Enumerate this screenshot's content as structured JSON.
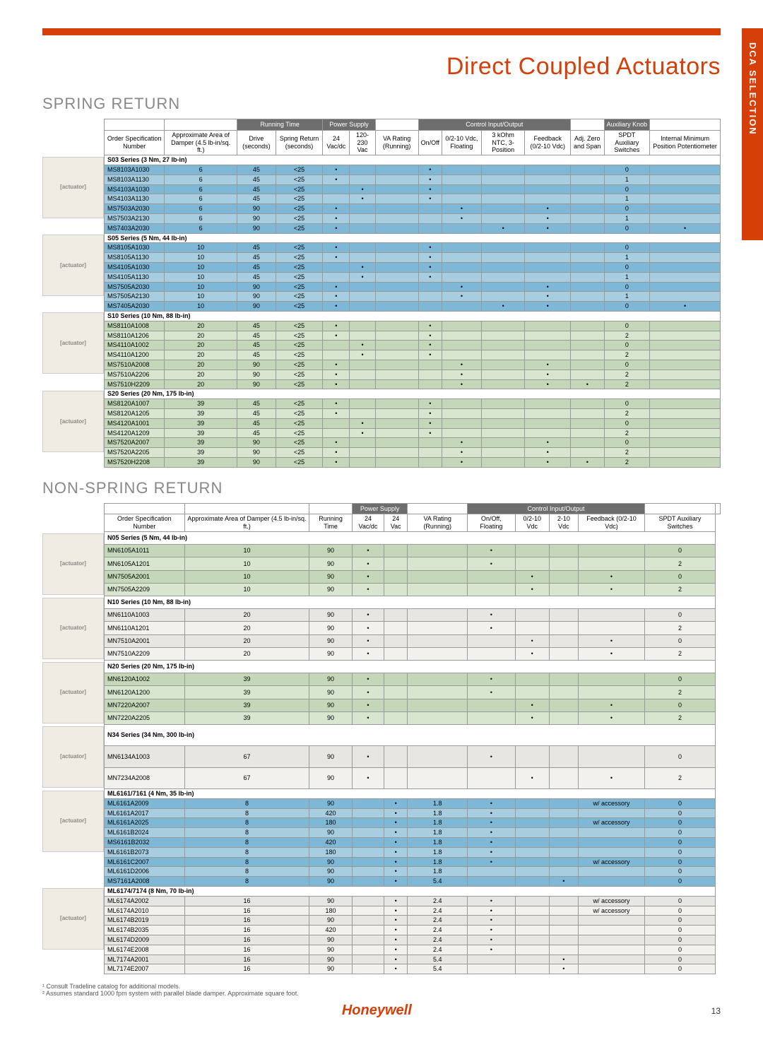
{
  "page_title": "Direct Coupled Actuators",
  "side_tab": "DCA SELECTION",
  "brand": "Honeywell",
  "page_number": "13",
  "footnotes": [
    "¹ Consult Tradeline catalog for additional models.",
    "² Assumes standard 1000 fpm system with parallel blade damper. Approximate square foot."
  ],
  "colors": {
    "accent": "#d73f09",
    "grey_header": "#6e6e6e",
    "row_blue": "#7fb8d6",
    "row_blue_alt": "#a7cde1",
    "row_green": "#c4d8b9",
    "row_green_alt": "#d8e5cf",
    "row_grey": "#e8e6e2",
    "row_grey_alt": "#f3f1ee",
    "text_grey": "#888888"
  },
  "sections": {
    "spring": {
      "title": "SPRING RETURN",
      "group_headers": [
        "",
        "",
        "Running Time",
        "Power Supply",
        "",
        "Control Input/Output",
        "",
        "Auxiliary Knob",
        ""
      ],
      "group_spans": [
        1,
        1,
        2,
        2,
        1,
        4,
        1,
        1,
        1
      ],
      "columns": [
        "Order Specification Number",
        "Approximate Area of Damper (4.5 lb-in/sq. ft.)",
        "Drive (seconds)",
        "Spring Return (seconds)",
        "24 Vac/dc",
        "120-230 Vac",
        "VA Rating (Running)",
        "On/Off",
        "0/2-10 Vdc, Floating",
        "3 kOhm NTC, 3-Position",
        "Feedback (0/2-10 Vdc)",
        "Adj. Zero and Span",
        "SPDT Auxiliary Switches",
        "Internal Minimum Position Potentiometer"
      ],
      "groups": [
        {
          "series": "S03 Series (3 Nm, 27 lb-in)",
          "color": "blue",
          "rows": [
            [
              "MS8103A1030",
              "6",
              "45",
              "<25",
              "•",
              "",
              "",
              "•",
              "",
              "",
              "",
              "",
              "0",
              ""
            ],
            [
              "MS8103A1130",
              "6",
              "45",
              "<25",
              "•",
              "",
              "",
              "•",
              "",
              "",
              "",
              "",
              "1",
              ""
            ],
            [
              "MS4103A1030",
              "6",
              "45",
              "<25",
              "",
              "•",
              "",
              "•",
              "",
              "",
              "",
              "",
              "0",
              ""
            ],
            [
              "MS4103A1130",
              "6",
              "45",
              "<25",
              "",
              "•",
              "",
              "•",
              "",
              "",
              "",
              "",
              "1",
              ""
            ],
            [
              "MS7503A2030",
              "6",
              "90",
              "<25",
              "•",
              "",
              "",
              "",
              "•",
              "",
              "•",
              "",
              "0",
              ""
            ],
            [
              "MS7503A2130",
              "6",
              "90",
              "<25",
              "•",
              "",
              "",
              "",
              "•",
              "",
              "•",
              "",
              "1",
              ""
            ],
            [
              "MS7403A2030",
              "6",
              "90",
              "<25",
              "•",
              "",
              "",
              "",
              "",
              "•",
              "•",
              "",
              "0",
              "•"
            ]
          ]
        },
        {
          "series": "S05 Series (5 Nm, 44 lb-in)",
          "color": "blue",
          "rows": [
            [
              "MS8105A1030",
              "10",
              "45",
              "<25",
              "•",
              "",
              "",
              "•",
              "",
              "",
              "",
              "",
              "0",
              ""
            ],
            [
              "MS8105A1130",
              "10",
              "45",
              "<25",
              "•",
              "",
              "",
              "•",
              "",
              "",
              "",
              "",
              "1",
              ""
            ],
            [
              "MS4105A1030",
              "10",
              "45",
              "<25",
              "",
              "•",
              "",
              "•",
              "",
              "",
              "",
              "",
              "0",
              ""
            ],
            [
              "MS4105A1130",
              "10",
              "45",
              "<25",
              "",
              "•",
              "",
              "•",
              "",
              "",
              "",
              "",
              "1",
              ""
            ],
            [
              "MS7505A2030",
              "10",
              "90",
              "<25",
              "•",
              "",
              "",
              "",
              "•",
              "",
              "•",
              "",
              "0",
              ""
            ],
            [
              "MS7505A2130",
              "10",
              "90",
              "<25",
              "•",
              "",
              "",
              "",
              "•",
              "",
              "•",
              "",
              "1",
              ""
            ],
            [
              "MS7405A2030",
              "10",
              "90",
              "<25",
              "•",
              "",
              "",
              "",
              "",
              "•",
              "•",
              "",
              "0",
              "•"
            ]
          ]
        },
        {
          "series": "S10 Series (10 Nm, 88 lb-in)",
          "color": "green",
          "rows": [
            [
              "MS8110A1008",
              "20",
              "45",
              "<25",
              "•",
              "",
              "",
              "•",
              "",
              "",
              "",
              "",
              "0",
              ""
            ],
            [
              "MS8110A1206",
              "20",
              "45",
              "<25",
              "•",
              "",
              "",
              "•",
              "",
              "",
              "",
              "",
              "2",
              ""
            ],
            [
              "MS4110A1002",
              "20",
              "45",
              "<25",
              "",
              "•",
              "",
              "•",
              "",
              "",
              "",
              "",
              "0",
              ""
            ],
            [
              "MS4110A1200",
              "20",
              "45",
              "<25",
              "",
              "•",
              "",
              "•",
              "",
              "",
              "",
              "",
              "2",
              ""
            ],
            [
              "MS7510A2008",
              "20",
              "90",
              "<25",
              "•",
              "",
              "",
              "",
              "•",
              "",
              "•",
              "",
              "0",
              ""
            ],
            [
              "MS7510A2206",
              "20",
              "90",
              "<25",
              "•",
              "",
              "",
              "",
              "•",
              "",
              "•",
              "",
              "2",
              ""
            ],
            [
              "MS7510H2209",
              "20",
              "90",
              "<25",
              "•",
              "",
              "",
              "",
              "•",
              "",
              "•",
              "•",
              "2",
              ""
            ]
          ]
        },
        {
          "series": "S20 Series (20 Nm, 175 lb-in)",
          "color": "green",
          "rows": [
            [
              "MS8120A1007",
              "39",
              "45",
              "<25",
              "•",
              "",
              "",
              "•",
              "",
              "",
              "",
              "",
              "0",
              ""
            ],
            [
              "MS8120A1205",
              "39",
              "45",
              "<25",
              "•",
              "",
              "",
              "•",
              "",
              "",
              "",
              "",
              "2",
              ""
            ],
            [
              "MS4120A1001",
              "39",
              "45",
              "<25",
              "",
              "•",
              "",
              "•",
              "",
              "",
              "",
              "",
              "0",
              ""
            ],
            [
              "MS4120A1209",
              "39",
              "45",
              "<25",
              "",
              "•",
              "",
              "•",
              "",
              "",
              "",
              "",
              "2",
              ""
            ],
            [
              "MS7520A2007",
              "39",
              "90",
              "<25",
              "•",
              "",
              "",
              "",
              "•",
              "",
              "•",
              "",
              "0",
              ""
            ],
            [
              "MS7520A2205",
              "39",
              "90",
              "<25",
              "•",
              "",
              "",
              "",
              "•",
              "",
              "•",
              "",
              "2",
              ""
            ],
            [
              "MS7520H2208",
              "39",
              "90",
              "<25",
              "•",
              "",
              "",
              "",
              "•",
              "",
              "•",
              "•",
              "2",
              ""
            ]
          ]
        }
      ]
    },
    "nonspring": {
      "title": "NON-SPRING RETURN",
      "group_headers": [
        "",
        "",
        "",
        "Power Supply",
        "",
        "Control Input/Output",
        "",
        ""
      ],
      "group_spans": [
        1,
        1,
        1,
        2,
        1,
        4,
        1,
        1
      ],
      "columns": [
        "Order Specification Number",
        "Approximate Area of Damper (4.5 lb-in/sq. ft.)",
        "Running Time",
        "24 Vac/dc",
        "24 Vac",
        "VA Rating (Running)",
        "On/Off, Floating",
        "0/2-10 Vdc",
        "2-10 Vdc",
        "Feedback (0/2-10 Vdc)",
        "SPDT Auxiliary Switches"
      ],
      "groups": [
        {
          "series": "N05 Series (5 Nm, 44 lb-in)",
          "color": "green",
          "rows": [
            [
              "MN6105A1011",
              "10",
              "90",
              "•",
              "",
              "",
              "•",
              "",
              "",
              "",
              "0"
            ],
            [
              "MN6105A1201",
              "10",
              "90",
              "•",
              "",
              "",
              "•",
              "",
              "",
              "",
              "2"
            ],
            [
              "MN7505A2001",
              "10",
              "90",
              "•",
              "",
              "",
              "",
              "•",
              "",
              "•",
              "0"
            ],
            [
              "MN7505A2209",
              "10",
              "90",
              "•",
              "",
              "",
              "",
              "•",
              "",
              "•",
              "2"
            ]
          ]
        },
        {
          "series": "N10 Series (10 Nm, 88 lb-in)",
          "color": "grey",
          "rows": [
            [
              "MN6110A1003",
              "20",
              "90",
              "•",
              "",
              "",
              "•",
              "",
              "",
              "",
              "0"
            ],
            [
              "MN6110A1201",
              "20",
              "90",
              "•",
              "",
              "",
              "•",
              "",
              "",
              "",
              "2"
            ],
            [
              "MN7510A2001",
              "20",
              "90",
              "•",
              "",
              "",
              "",
              "•",
              "",
              "•",
              "0"
            ],
            [
              "MN7510A2209",
              "20",
              "90",
              "•",
              "",
              "",
              "",
              "•",
              "",
              "•",
              "2"
            ]
          ]
        },
        {
          "series": "N20 Series (20 Nm, 175 lb-in)",
          "color": "green",
          "rows": [
            [
              "MN6120A1002",
              "39",
              "90",
              "•",
              "",
              "",
              "•",
              "",
              "",
              "",
              "0"
            ],
            [
              "MN6120A1200",
              "39",
              "90",
              "•",
              "",
              "",
              "•",
              "",
              "",
              "",
              "2"
            ],
            [
              "MN7220A2007",
              "39",
              "90",
              "•",
              "",
              "",
              "",
              "•",
              "",
              "•",
              "0"
            ],
            [
              "MN7220A2205",
              "39",
              "90",
              "•",
              "",
              "",
              "",
              "•",
              "",
              "•",
              "2"
            ]
          ]
        },
        {
          "series": "N34 Series (34 Nm, 300 lb-in)",
          "color": "grey",
          "rows": [
            [
              "MN6134A1003",
              "67",
              "90",
              "•",
              "",
              "",
              "•",
              "",
              "",
              "",
              "0"
            ],
            [
              "MN7234A2008",
              "67",
              "90",
              "•",
              "",
              "",
              "",
              "•",
              "",
              "•",
              "2"
            ]
          ]
        },
        {
          "series": "ML6161/7161 (4 Nm, 35 lb-in)",
          "color": "blue",
          "rows": [
            [
              "ML6161A2009",
              "8",
              "90",
              "",
              "•",
              "1.8",
              "•",
              "",
              "",
              "w/ accessory",
              "0"
            ],
            [
              "ML6161A2017",
              "8",
              "420",
              "",
              "•",
              "1.8",
              "•",
              "",
              "",
              "",
              "0"
            ],
            [
              "ML6161A2025",
              "8",
              "180",
              "",
              "•",
              "1.8",
              "•",
              "",
              "",
              "w/ accessory",
              "0"
            ],
            [
              "ML6161B2024",
              "8",
              "90",
              "",
              "•",
              "1.8",
              "•",
              "",
              "",
              "",
              "0"
            ],
            [
              "MS6161B2032",
              "8",
              "420",
              "",
              "•",
              "1.8",
              "•",
              "",
              "",
              "",
              "0"
            ],
            [
              "ML6161B2073",
              "8",
              "180",
              "",
              "•",
              "1.8",
              "•",
              "",
              "",
              "",
              "0"
            ],
            [
              "ML6161C2007",
              "8",
              "90",
              "",
              "•",
              "1.8",
              "•",
              "",
              "",
              "w/ accessory",
              "0"
            ],
            [
              "ML6161D2006",
              "8",
              "90",
              "",
              "•",
              "1.8",
              "",
              "",
              "",
              "",
              "0"
            ],
            [
              "MS7161A2008",
              "8",
              "90",
              "",
              "•",
              "5.4",
              "",
              "",
              "•",
              "",
              "0"
            ]
          ]
        },
        {
          "series": "ML6174/7174 (8 Nm, 70 lb-in)",
          "color": "grey",
          "rows": [
            [
              "ML6174A2002",
              "16",
              "90",
              "",
              "•",
              "2.4",
              "•",
              "",
              "",
              "w/ accessory",
              "0"
            ],
            [
              "ML6174A2010",
              "16",
              "180",
              "",
              "•",
              "2.4",
              "•",
              "",
              "",
              "w/ accessory",
              "0"
            ],
            [
              "ML6174B2019",
              "16",
              "90",
              "",
              "•",
              "2.4",
              "•",
              "",
              "",
              "",
              "0"
            ],
            [
              "ML6174B2035",
              "16",
              "420",
              "",
              "•",
              "2.4",
              "•",
              "",
              "",
              "",
              "0"
            ],
            [
              "ML6174D2009",
              "16",
              "90",
              "",
              "•",
              "2.4",
              "•",
              "",
              "",
              "",
              "0"
            ],
            [
              "ML6174E2008",
              "16",
              "90",
              "",
              "•",
              "2.4",
              "•",
              "",
              "",
              "",
              "0"
            ],
            [
              "ML7174A2001",
              "16",
              "90",
              "",
              "•",
              "5.4",
              "",
              "",
              "•",
              "",
              "0"
            ],
            [
              "ML7174E2007",
              "16",
              "90",
              "",
              "•",
              "5.4",
              "",
              "",
              "•",
              "",
              "0"
            ]
          ]
        }
      ]
    }
  }
}
